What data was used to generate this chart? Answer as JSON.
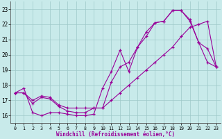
{
  "bg_color": "#c8eaea",
  "line_color": "#990099",
  "xlabel": "Windchill (Refroidissement éolien,°C)",
  "xlim": [
    -0.5,
    23.5
  ],
  "ylim": [
    15.5,
    23.5
  ],
  "xticks": [
    0,
    1,
    2,
    3,
    4,
    5,
    6,
    7,
    8,
    9,
    10,
    11,
    12,
    13,
    14,
    15,
    16,
    17,
    18,
    19,
    20,
    21,
    22,
    23
  ],
  "yticks": [
    16,
    17,
    18,
    19,
    20,
    21,
    22,
    23
  ],
  "line1_x": [
    0,
    1,
    2,
    3,
    4,
    5,
    6,
    7,
    8,
    9,
    10,
    11,
    12,
    13,
    14,
    15,
    16,
    17,
    18,
    19,
    20,
    21,
    22,
    23
  ],
  "line1_y": [
    17.5,
    17.8,
    16.2,
    16.0,
    16.2,
    16.2,
    16.1,
    16.0,
    16.0,
    16.1,
    17.8,
    18.9,
    20.3,
    18.9,
    20.5,
    21.5,
    22.1,
    22.2,
    22.9,
    22.9,
    22.2,
    20.8,
    20.4,
    19.2
  ],
  "line2_x": [
    0,
    1,
    2,
    3,
    4,
    5,
    6,
    7,
    8,
    9,
    10,
    11,
    12,
    13,
    14,
    15,
    16,
    17,
    18,
    19,
    20,
    21,
    22,
    23
  ],
  "line2_y": [
    17.5,
    17.5,
    17.0,
    17.3,
    17.2,
    16.7,
    16.5,
    16.5,
    16.5,
    16.5,
    16.5,
    18.2,
    19.2,
    19.5,
    20.5,
    21.2,
    22.1,
    22.2,
    22.9,
    22.9,
    22.3,
    20.8,
    19.5,
    19.2
  ],
  "line3_x": [
    0,
    1,
    2,
    3,
    4,
    5,
    6,
    7,
    8,
    9,
    10,
    11,
    12,
    13,
    14,
    15,
    16,
    17,
    18,
    19,
    20,
    21,
    22,
    23
  ],
  "line3_y": [
    17.5,
    17.5,
    16.8,
    17.2,
    17.1,
    16.6,
    16.3,
    16.2,
    16.2,
    16.5,
    16.5,
    17.0,
    17.5,
    18.0,
    18.5,
    19.0,
    19.5,
    20.0,
    20.5,
    21.2,
    21.8,
    22.0,
    22.2,
    19.2
  ],
  "grid_color": "#9ec8c8",
  "tick_fontsize": 5.5,
  "xlabel_fontsize": 5.5
}
